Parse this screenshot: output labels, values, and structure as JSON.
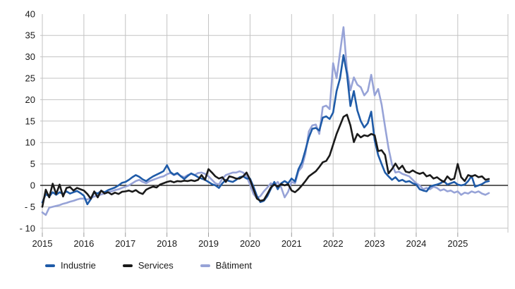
{
  "chart_data": {
    "type": "line",
    "title": "",
    "x_start": "2015-01",
    "frequency": "monthly",
    "x_tick_labels": [
      "2015",
      "2016",
      "2017",
      "2018",
      "2019",
      "2020",
      "2021",
      "2022",
      "2023",
      "2024",
      "2025"
    ],
    "y_ticks": [
      40,
      35,
      30,
      25,
      20,
      15,
      10,
      5,
      0,
      -5,
      -10
    ],
    "y_tick_labels": [
      "40",
      "35",
      "30",
      "25",
      "20",
      "15",
      "10",
      "5",
      "0",
      "- 5",
      "- 10"
    ],
    "ylim": [
      -10,
      40
    ],
    "grid": true,
    "legend_position": "bottom",
    "colors": {
      "grid": "#c3c3c3",
      "zero_line": "#000000",
      "tick_text": "#1a1a1a"
    },
    "series": [
      {
        "name": "Industrie",
        "color": "#1f5ba8",
        "values": [
          -4.0,
          -2.0,
          -2.6,
          -1.6,
          -2.2,
          -1.6,
          -2.0,
          -1.4,
          -1.9,
          -1.6,
          -1.3,
          -1.8,
          -2.4,
          -4.4,
          -3.2,
          -1.6,
          -1.9,
          -1.3,
          -1.6,
          -1.1,
          -0.8,
          -0.5,
          0.0,
          0.6,
          0.8,
          1.3,
          1.9,
          2.4,
          2.0,
          1.4,
          1.0,
          1.6,
          2.1,
          2.5,
          2.9,
          3.3,
          4.7,
          3.1,
          2.5,
          2.9,
          2.1,
          1.5,
          2.2,
          2.8,
          2.4,
          1.9,
          1.6,
          1.3,
          0.8,
          0.3,
          0.0,
          -0.6,
          0.5,
          1.3,
          1.0,
          0.8,
          1.3,
          1.9,
          2.1,
          1.6,
          1.6,
          -0.3,
          -2.5,
          -3.9,
          -3.6,
          -2.5,
          -0.8,
          0.8,
          -0.9,
          0.5,
          1.0,
          0.5,
          1.6,
          0.9,
          3.8,
          5.4,
          8.2,
          11.2,
          13.2,
          13.4,
          12.8,
          15.8,
          16.1,
          15.5,
          17.0,
          22.0,
          25.0,
          30.4,
          26.0,
          18.5,
          22.0,
          17.5,
          15.0,
          13.5,
          14.5,
          17.2,
          10.5,
          7.1,
          5.0,
          3.0,
          2.1,
          1.3,
          1.9,
          1.0,
          1.3,
          0.8,
          1.0,
          0.5,
          0.2,
          -0.9,
          -1.2,
          -1.4,
          -0.3,
          0.0,
          0.2,
          0.5,
          1.0,
          0.2,
          0.5,
          0.8,
          0.2,
          0.0,
          0.2,
          1.0,
          2.2,
          -0.3,
          0.0,
          0.3,
          0.8,
          1.0
        ]
      },
      {
        "name": "Services",
        "color": "#1a1a1a",
        "values": [
          -5.0,
          -1.0,
          -2.8,
          0.4,
          -2.0,
          0.2,
          -2.6,
          -0.6,
          -0.4,
          -1.2,
          -0.6,
          -0.9,
          -1.2,
          -2.0,
          -3.1,
          -1.4,
          -2.8,
          -1.2,
          -1.9,
          -1.6,
          -2.1,
          -1.7,
          -2.0,
          -1.5,
          -1.4,
          -1.2,
          -1.5,
          -1.1,
          -1.7,
          -2.0,
          -1.0,
          -0.6,
          -0.3,
          -0.5,
          0.2,
          0.5,
          0.8,
          1.0,
          0.7,
          1.0,
          0.9,
          1.1,
          1.0,
          1.2,
          1.0,
          1.3,
          2.4,
          1.3,
          3.8,
          3.0,
          2.1,
          1.6,
          1.9,
          0.8,
          2.1,
          1.9,
          1.6,
          1.6,
          2.1,
          3.0,
          1.3,
          -0.9,
          -3.1,
          -3.6,
          -3.4,
          -2.0,
          -0.5,
          0.2,
          -0.3,
          0.3,
          0.0,
          0.3,
          -1.2,
          -1.6,
          -0.9,
          0.0,
          1.0,
          2.1,
          2.7,
          3.3,
          4.3,
          5.4,
          5.7,
          7.0,
          9.5,
          12.0,
          14.0,
          16.0,
          16.5,
          14.0,
          10.1,
          12.0,
          11.2,
          11.7,
          11.5,
          12.0,
          11.7,
          8.0,
          8.2,
          7.1,
          2.8,
          3.8,
          5.1,
          3.8,
          4.6,
          3.2,
          3.0,
          3.5,
          3.0,
          2.7,
          3.0,
          2.1,
          2.4,
          1.6,
          1.9,
          1.3,
          0.8,
          2.1,
          1.3,
          1.6,
          5.0,
          1.9,
          1.0,
          2.4,
          2.1,
          2.4,
          1.9,
          2.1,
          1.3,
          1.5
        ]
      },
      {
        "name": "Bâtiment",
        "color": "#97a3d7",
        "values": [
          -6.3,
          -6.9,
          -5.2,
          -5.0,
          -4.8,
          -4.6,
          -4.3,
          -4.1,
          -3.8,
          -3.6,
          -3.3,
          -3.1,
          -3.1,
          -3.3,
          -2.9,
          -2.6,
          -2.4,
          -2.1,
          -1.9,
          -1.6,
          -1.4,
          -1.1,
          -0.9,
          -0.6,
          -0.3,
          0.0,
          0.5,
          1.0,
          1.3,
          0.8,
          0.5,
          1.0,
          1.3,
          1.6,
          1.9,
          2.1,
          2.6,
          2.9,
          2.4,
          2.7,
          2.2,
          1.9,
          2.4,
          2.7,
          2.4,
          2.9,
          3.0,
          2.7,
          2.1,
          1.3,
          0.5,
          0.2,
          1.6,
          2.4,
          2.7,
          3.0,
          3.0,
          3.3,
          3.0,
          2.1,
          0.2,
          -2.0,
          -3.0,
          -2.5,
          -1.4,
          -0.5,
          0.5,
          0.0,
          0.8,
          -0.5,
          -2.8,
          -1.5,
          0.8,
          0.5,
          3.3,
          4.3,
          7.4,
          12.6,
          14.0,
          14.2,
          12.0,
          18.3,
          18.6,
          17.8,
          28.5,
          25.0,
          31.0,
          36.9,
          27.0,
          22.2,
          25.2,
          23.5,
          22.9,
          21.0,
          22.0,
          25.8,
          21.0,
          22.5,
          18.9,
          13.7,
          8.7,
          4.9,
          3.0,
          3.2,
          2.7,
          2.4,
          2.1,
          1.3,
          0.5,
          0.0,
          -0.9,
          -0.6,
          -0.9,
          -0.3,
          -0.6,
          -1.2,
          -0.9,
          -1.4,
          -1.2,
          -1.7,
          -1.4,
          -2.2,
          -1.7,
          -1.9,
          -1.4,
          -1.7,
          -1.4,
          -1.9,
          -2.2,
          -1.8
        ]
      }
    ]
  },
  "legend": {
    "items": [
      "Industrie",
      "Services",
      "Bâtiment"
    ]
  }
}
